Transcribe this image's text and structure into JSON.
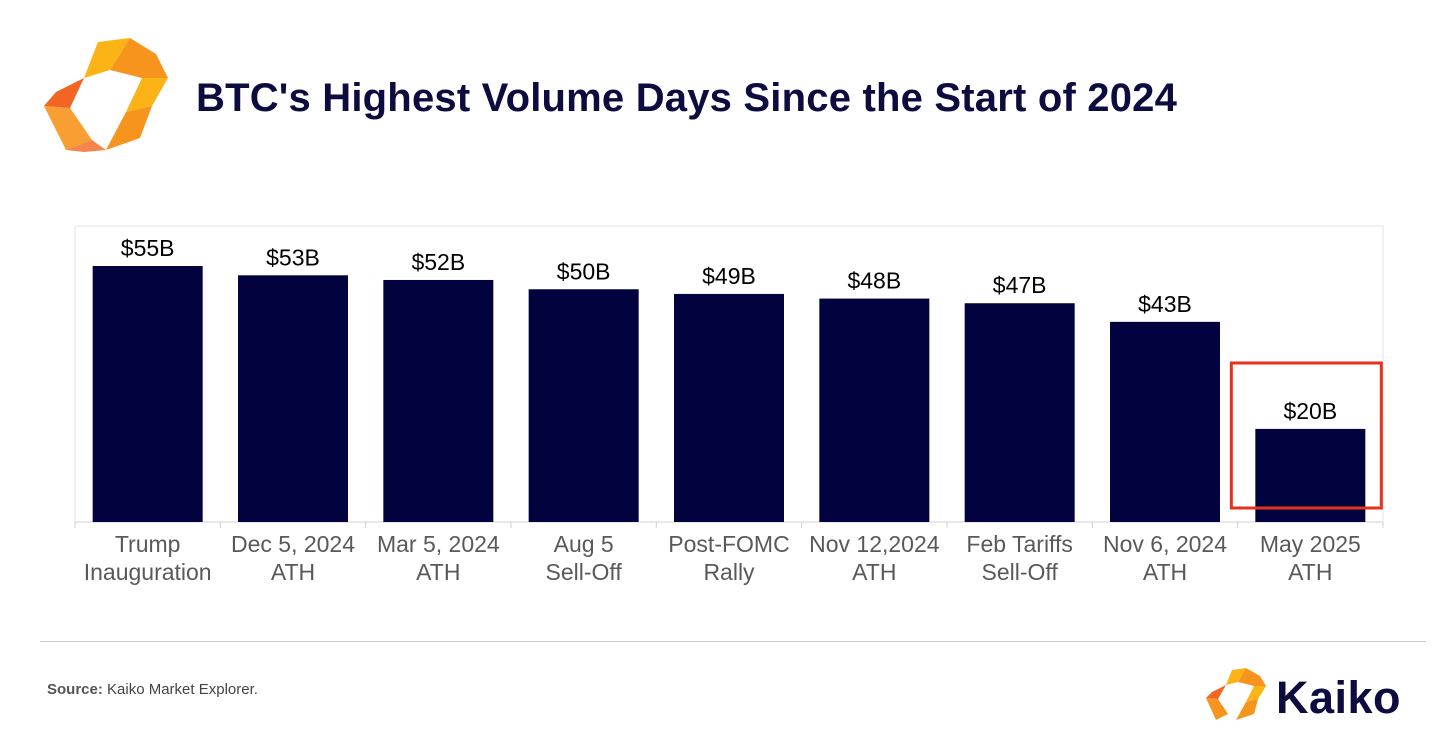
{
  "header": {
    "title": "BTC's Highest Volume Days Since the Start of 2024",
    "logo_icon": "kaiko-hexagon-logo-icon"
  },
  "chart_data": {
    "type": "bar",
    "categories": [
      [
        "Trump",
        "Inauguration"
      ],
      [
        "Dec 5, 2024",
        "ATH"
      ],
      [
        "Mar 5, 2024",
        "ATH"
      ],
      [
        "Aug 5",
        "Sell-Off"
      ],
      [
        "Post-FOMC",
        "Rally"
      ],
      [
        "Nov 12,2024",
        "ATH"
      ],
      [
        "Feb Tariffs",
        "Sell-Off"
      ],
      [
        "Nov 6, 2024",
        "ATH"
      ],
      [
        "May 2025",
        "ATH"
      ]
    ],
    "values": [
      55,
      53,
      52,
      50,
      49,
      48,
      47,
      43,
      20
    ],
    "labels": [
      "$55B",
      "$53B",
      "$52B",
      "$50B",
      "$49B",
      "$48B",
      "$47B",
      "$43B",
      "$20B"
    ],
    "unit": "$B",
    "ylim": [
      0,
      55
    ],
    "bar_color": "#02023e",
    "highlight_index": 8,
    "highlight_color": "#e8321e",
    "grid": false,
    "legend": "none"
  },
  "footer": {
    "source_label": "Source:",
    "source_text": " Kaiko Market Explorer.",
    "brand_name": "Kaiko",
    "brand_icon": "kaiko-logo-icon"
  },
  "colors": {
    "title": "#0c0c3e",
    "logo_orange": "#f7941d",
    "logo_yellow": "#fbb315",
    "logo_red": "#f26522"
  }
}
